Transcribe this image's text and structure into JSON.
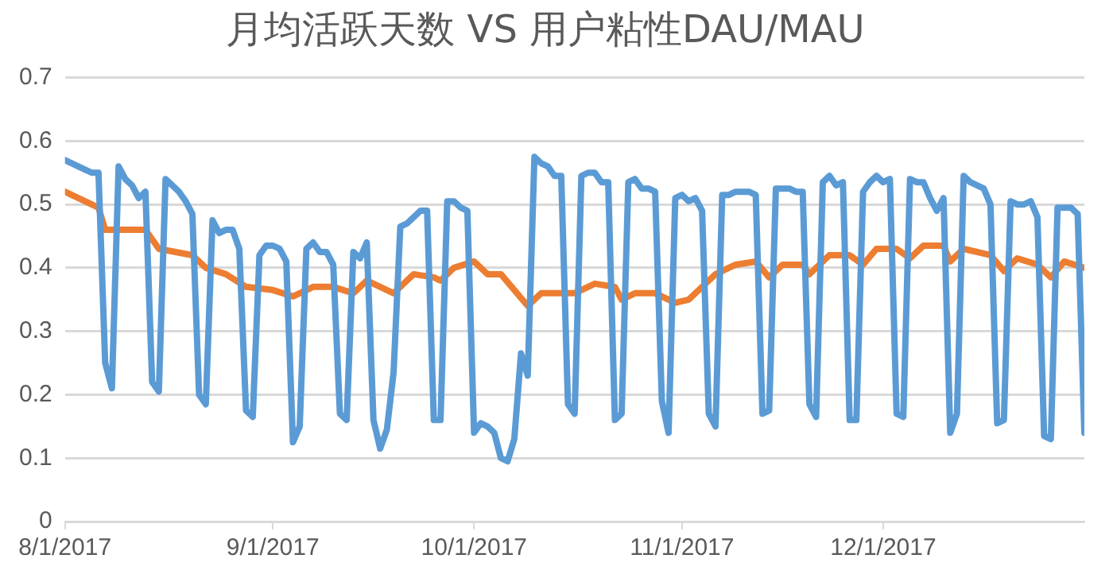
{
  "chart_data": {
    "type": "line",
    "title": "月均活跃天数 VS 用户粘性DAU/MAU",
    "x": [
      "2017-08-01",
      "2017-08-02",
      "2017-08-03",
      "2017-08-04",
      "2017-08-05",
      "2017-08-06",
      "2017-08-07",
      "2017-08-08",
      "2017-08-09",
      "2017-08-10",
      "2017-08-11",
      "2017-08-12",
      "2017-08-13",
      "2017-08-14",
      "2017-08-15",
      "2017-08-16",
      "2017-08-17",
      "2017-08-18",
      "2017-08-19",
      "2017-08-20",
      "2017-08-21",
      "2017-08-22",
      "2017-08-23",
      "2017-08-24",
      "2017-08-25",
      "2017-08-26",
      "2017-08-27",
      "2017-08-28",
      "2017-08-29",
      "2017-08-30",
      "2017-08-31",
      "2017-09-01",
      "2017-09-02",
      "2017-09-03",
      "2017-09-04",
      "2017-09-05",
      "2017-09-06",
      "2017-09-07",
      "2017-09-08",
      "2017-09-09",
      "2017-09-10",
      "2017-09-11",
      "2017-09-12",
      "2017-09-13",
      "2017-09-14",
      "2017-09-15",
      "2017-09-16",
      "2017-09-17",
      "2017-09-18",
      "2017-09-19",
      "2017-09-20",
      "2017-09-21",
      "2017-09-22",
      "2017-09-23",
      "2017-09-24",
      "2017-09-25",
      "2017-09-26",
      "2017-09-27",
      "2017-09-28",
      "2017-09-29",
      "2017-09-30",
      "2017-10-01",
      "2017-10-02",
      "2017-10-03",
      "2017-10-04",
      "2017-10-05",
      "2017-10-06",
      "2017-10-07",
      "2017-10-08",
      "2017-10-09",
      "2017-10-10",
      "2017-10-11",
      "2017-10-12",
      "2017-10-13",
      "2017-10-14",
      "2017-10-15",
      "2017-10-16",
      "2017-10-17",
      "2017-10-18",
      "2017-10-19",
      "2017-10-20",
      "2017-10-21",
      "2017-10-22",
      "2017-10-23",
      "2017-10-24",
      "2017-10-25",
      "2017-10-26",
      "2017-10-27",
      "2017-10-28",
      "2017-10-29",
      "2017-10-30",
      "2017-10-31",
      "2017-11-01",
      "2017-11-02",
      "2017-11-03",
      "2017-11-04",
      "2017-11-05",
      "2017-11-06",
      "2017-11-07",
      "2017-11-08",
      "2017-11-09",
      "2017-11-10",
      "2017-11-11",
      "2017-11-12",
      "2017-11-13",
      "2017-11-14",
      "2017-11-15",
      "2017-11-16",
      "2017-11-17",
      "2017-11-18",
      "2017-11-19",
      "2017-11-20",
      "2017-11-21",
      "2017-11-22",
      "2017-11-23",
      "2017-11-24",
      "2017-11-25",
      "2017-11-26",
      "2017-11-27",
      "2017-11-28",
      "2017-11-29",
      "2017-11-30",
      "2017-12-01",
      "2017-12-02",
      "2017-12-03",
      "2017-12-04",
      "2017-12-05",
      "2017-12-06",
      "2017-12-07",
      "2017-12-08",
      "2017-12-09",
      "2017-12-10",
      "2017-12-11",
      "2017-12-12",
      "2017-12-13",
      "2017-12-14",
      "2017-12-15",
      "2017-12-16",
      "2017-12-17",
      "2017-12-18",
      "2017-12-19",
      "2017-12-20",
      "2017-12-21",
      "2017-12-22",
      "2017-12-23",
      "2017-12-24",
      "2017-12-25",
      "2017-12-26",
      "2017-12-27",
      "2017-12-28",
      "2017-12-29",
      "2017-12-30",
      "2017-12-31"
    ],
    "series": [
      {
        "color": "#5b9bd5",
        "values": [
          0.57,
          0.565,
          0.56,
          0.555,
          0.55,
          0.55,
          0.25,
          0.21,
          0.56,
          0.54,
          0.53,
          0.51,
          0.52,
          0.22,
          0.205,
          0.54,
          0.53,
          0.52,
          0.505,
          0.485,
          0.2,
          0.185,
          0.475,
          0.455,
          0.46,
          0.46,
          0.43,
          0.175,
          0.165,
          0.42,
          0.435,
          0.435,
          0.43,
          0.41,
          0.125,
          0.15,
          0.43,
          0.44,
          0.425,
          0.425,
          0.405,
          0.17,
          0.16,
          0.425,
          0.415,
          0.44,
          0.16,
          0.115,
          0.145,
          0.235,
          0.465,
          0.47,
          0.48,
          0.49,
          0.49,
          0.16,
          0.16,
          0.505,
          0.505,
          0.495,
          0.49,
          0.14,
          0.155,
          0.15,
          0.14,
          0.1,
          0.095,
          0.13,
          0.265,
          0.23,
          0.575,
          0.565,
          0.56,
          0.545,
          0.545,
          0.185,
          0.17,
          0.545,
          0.55,
          0.55,
          0.535,
          0.535,
          0.16,
          0.17,
          0.535,
          0.54,
          0.525,
          0.525,
          0.52,
          0.19,
          0.14,
          0.51,
          0.515,
          0.505,
          0.51,
          0.49,
          0.17,
          0.15,
          0.515,
          0.515,
          0.52,
          0.52,
          0.52,
          0.515,
          0.17,
          0.175,
          0.525,
          0.525,
          0.525,
          0.52,
          0.52,
          0.185,
          0.165,
          0.535,
          0.545,
          0.53,
          0.535,
          0.16,
          0.16,
          0.52,
          0.535,
          0.545,
          0.535,
          0.54,
          0.17,
          0.165,
          0.54,
          0.535,
          0.535,
          0.51,
          0.49,
          0.51,
          0.14,
          0.17,
          0.545,
          0.535,
          0.53,
          0.525,
          0.5,
          0.155,
          0.16,
          0.505,
          0.5,
          0.5,
          0.505,
          0.48,
          0.135,
          0.13,
          0.495,
          0.495,
          0.495,
          0.485,
          0.14
        ]
      },
      {
        "color": "#ed7d31",
        "x": [
          "2017-08-01",
          "2017-08-06",
          "2017-08-07",
          "2017-08-13",
          "2017-08-15",
          "2017-08-20",
          "2017-08-22",
          "2017-08-25",
          "2017-08-28",
          "2017-09-01",
          "2017-09-04",
          "2017-09-07",
          "2017-09-10",
          "2017-09-13",
          "2017-09-15",
          "2017-09-19",
          "2017-09-22",
          "2017-09-25",
          "2017-09-26",
          "2017-09-28",
          "2017-10-01",
          "2017-10-03",
          "2017-10-05",
          "2017-10-09",
          "2017-10-11",
          "2017-10-16",
          "2017-10-19",
          "2017-10-22",
          "2017-10-23",
          "2017-10-25",
          "2017-10-28",
          "2017-10-31",
          "2017-11-02",
          "2017-11-06",
          "2017-11-09",
          "2017-11-12",
          "2017-11-14",
          "2017-11-16",
          "2017-11-19",
          "2017-11-20",
          "2017-11-23",
          "2017-11-26",
          "2017-11-28",
          "2017-11-30",
          "2017-12-03",
          "2017-12-05",
          "2017-12-07",
          "2017-12-10",
          "2017-12-11",
          "2017-12-13",
          "2017-12-17",
          "2017-12-19",
          "2017-12-21",
          "2017-12-24",
          "2017-12-26",
          "2017-12-28",
          "2017-12-31"
        ],
        "values": [
          0.52,
          0.495,
          0.46,
          0.46,
          0.43,
          0.42,
          0.4,
          0.39,
          0.37,
          0.365,
          0.355,
          0.37,
          0.37,
          0.36,
          0.38,
          0.36,
          0.39,
          0.385,
          0.38,
          0.4,
          0.41,
          0.39,
          0.39,
          0.34,
          0.36,
          0.36,
          0.375,
          0.37,
          0.35,
          0.36,
          0.36,
          0.345,
          0.35,
          0.39,
          0.405,
          0.41,
          0.385,
          0.405,
          0.405,
          0.39,
          0.42,
          0.42,
          0.405,
          0.43,
          0.43,
          0.415,
          0.435,
          0.435,
          0.41,
          0.43,
          0.42,
          0.395,
          0.415,
          0.405,
          0.385,
          0.41,
          0.4
        ]
      }
    ],
    "xlim": [
      "2017-08-01",
      "2017-12-31"
    ],
    "xticks": [
      {
        "value": "2017-08-01",
        "label": "8/1/2017"
      },
      {
        "value": "2017-09-01",
        "label": "9/1/2017"
      },
      {
        "value": "2017-10-01",
        "label": "10/1/2017"
      },
      {
        "value": "2017-11-01",
        "label": "11/1/2017"
      },
      {
        "value": "2017-12-01",
        "label": "12/1/2017"
      }
    ],
    "ylim": [
      0,
      0.7
    ],
    "yticks": [
      0,
      0.1,
      0.2,
      0.3,
      0.4,
      0.5,
      0.6,
      0.7
    ],
    "grid": "y",
    "legend": false,
    "marker": "none",
    "line_style": "solid"
  }
}
